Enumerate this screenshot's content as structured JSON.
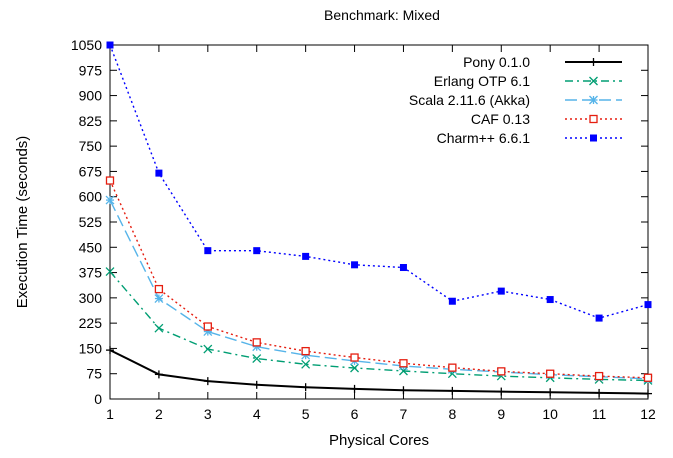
{
  "chart_data": {
    "type": "line",
    "title": "Benchmark: Mixed",
    "xlabel": "Physical Cores",
    "ylabel": "Execution Time (seconds)",
    "xlim": [
      1,
      12
    ],
    "ylim": [
      0,
      1050
    ],
    "x_ticks": [
      1,
      2,
      3,
      4,
      5,
      6,
      7,
      8,
      9,
      10,
      11,
      12
    ],
    "y_ticks": [
      0,
      75,
      150,
      225,
      300,
      375,
      450,
      525,
      600,
      675,
      750,
      825,
      900,
      975,
      1050
    ],
    "grid": false,
    "legend_position": "top-right",
    "x": [
      1,
      2,
      3,
      4,
      5,
      6,
      7,
      8,
      9,
      10,
      11,
      12
    ],
    "series": [
      {
        "name": "Pony 0.1.0",
        "color": "#000000",
        "dash": "solid",
        "marker": "plus",
        "values": [
          145,
          73,
          53,
          42,
          35,
          30,
          26,
          24,
          22,
          20,
          18,
          16
        ]
      },
      {
        "name": "Erlang OTP 6.1",
        "color": "#009e73",
        "dash": "dashdot",
        "marker": "x",
        "values": [
          378,
          210,
          148,
          120,
          103,
          92,
          83,
          75,
          68,
          63,
          58,
          55
        ]
      },
      {
        "name": "Scala 2.11.6 (Akka)",
        "color": "#56b4e9",
        "dash": "longdash",
        "marker": "star",
        "values": [
          590,
          298,
          200,
          155,
          130,
          113,
          98,
          88,
          80,
          72,
          66,
          60
        ]
      },
      {
        "name": "CAF 0.13",
        "color": "#e51e10",
        "dash": "dot",
        "marker": "open-square",
        "values": [
          648,
          326,
          215,
          168,
          142,
          123,
          106,
          93,
          82,
          75,
          68,
          63
        ]
      },
      {
        "name": "Charm++ 6.6.1",
        "color": "#0000ff",
        "dash": "dot",
        "marker": "filled-square",
        "values": [
          1050,
          670,
          440,
          440,
          423,
          398,
          390,
          290,
          320,
          295,
          240,
          280
        ]
      }
    ]
  }
}
